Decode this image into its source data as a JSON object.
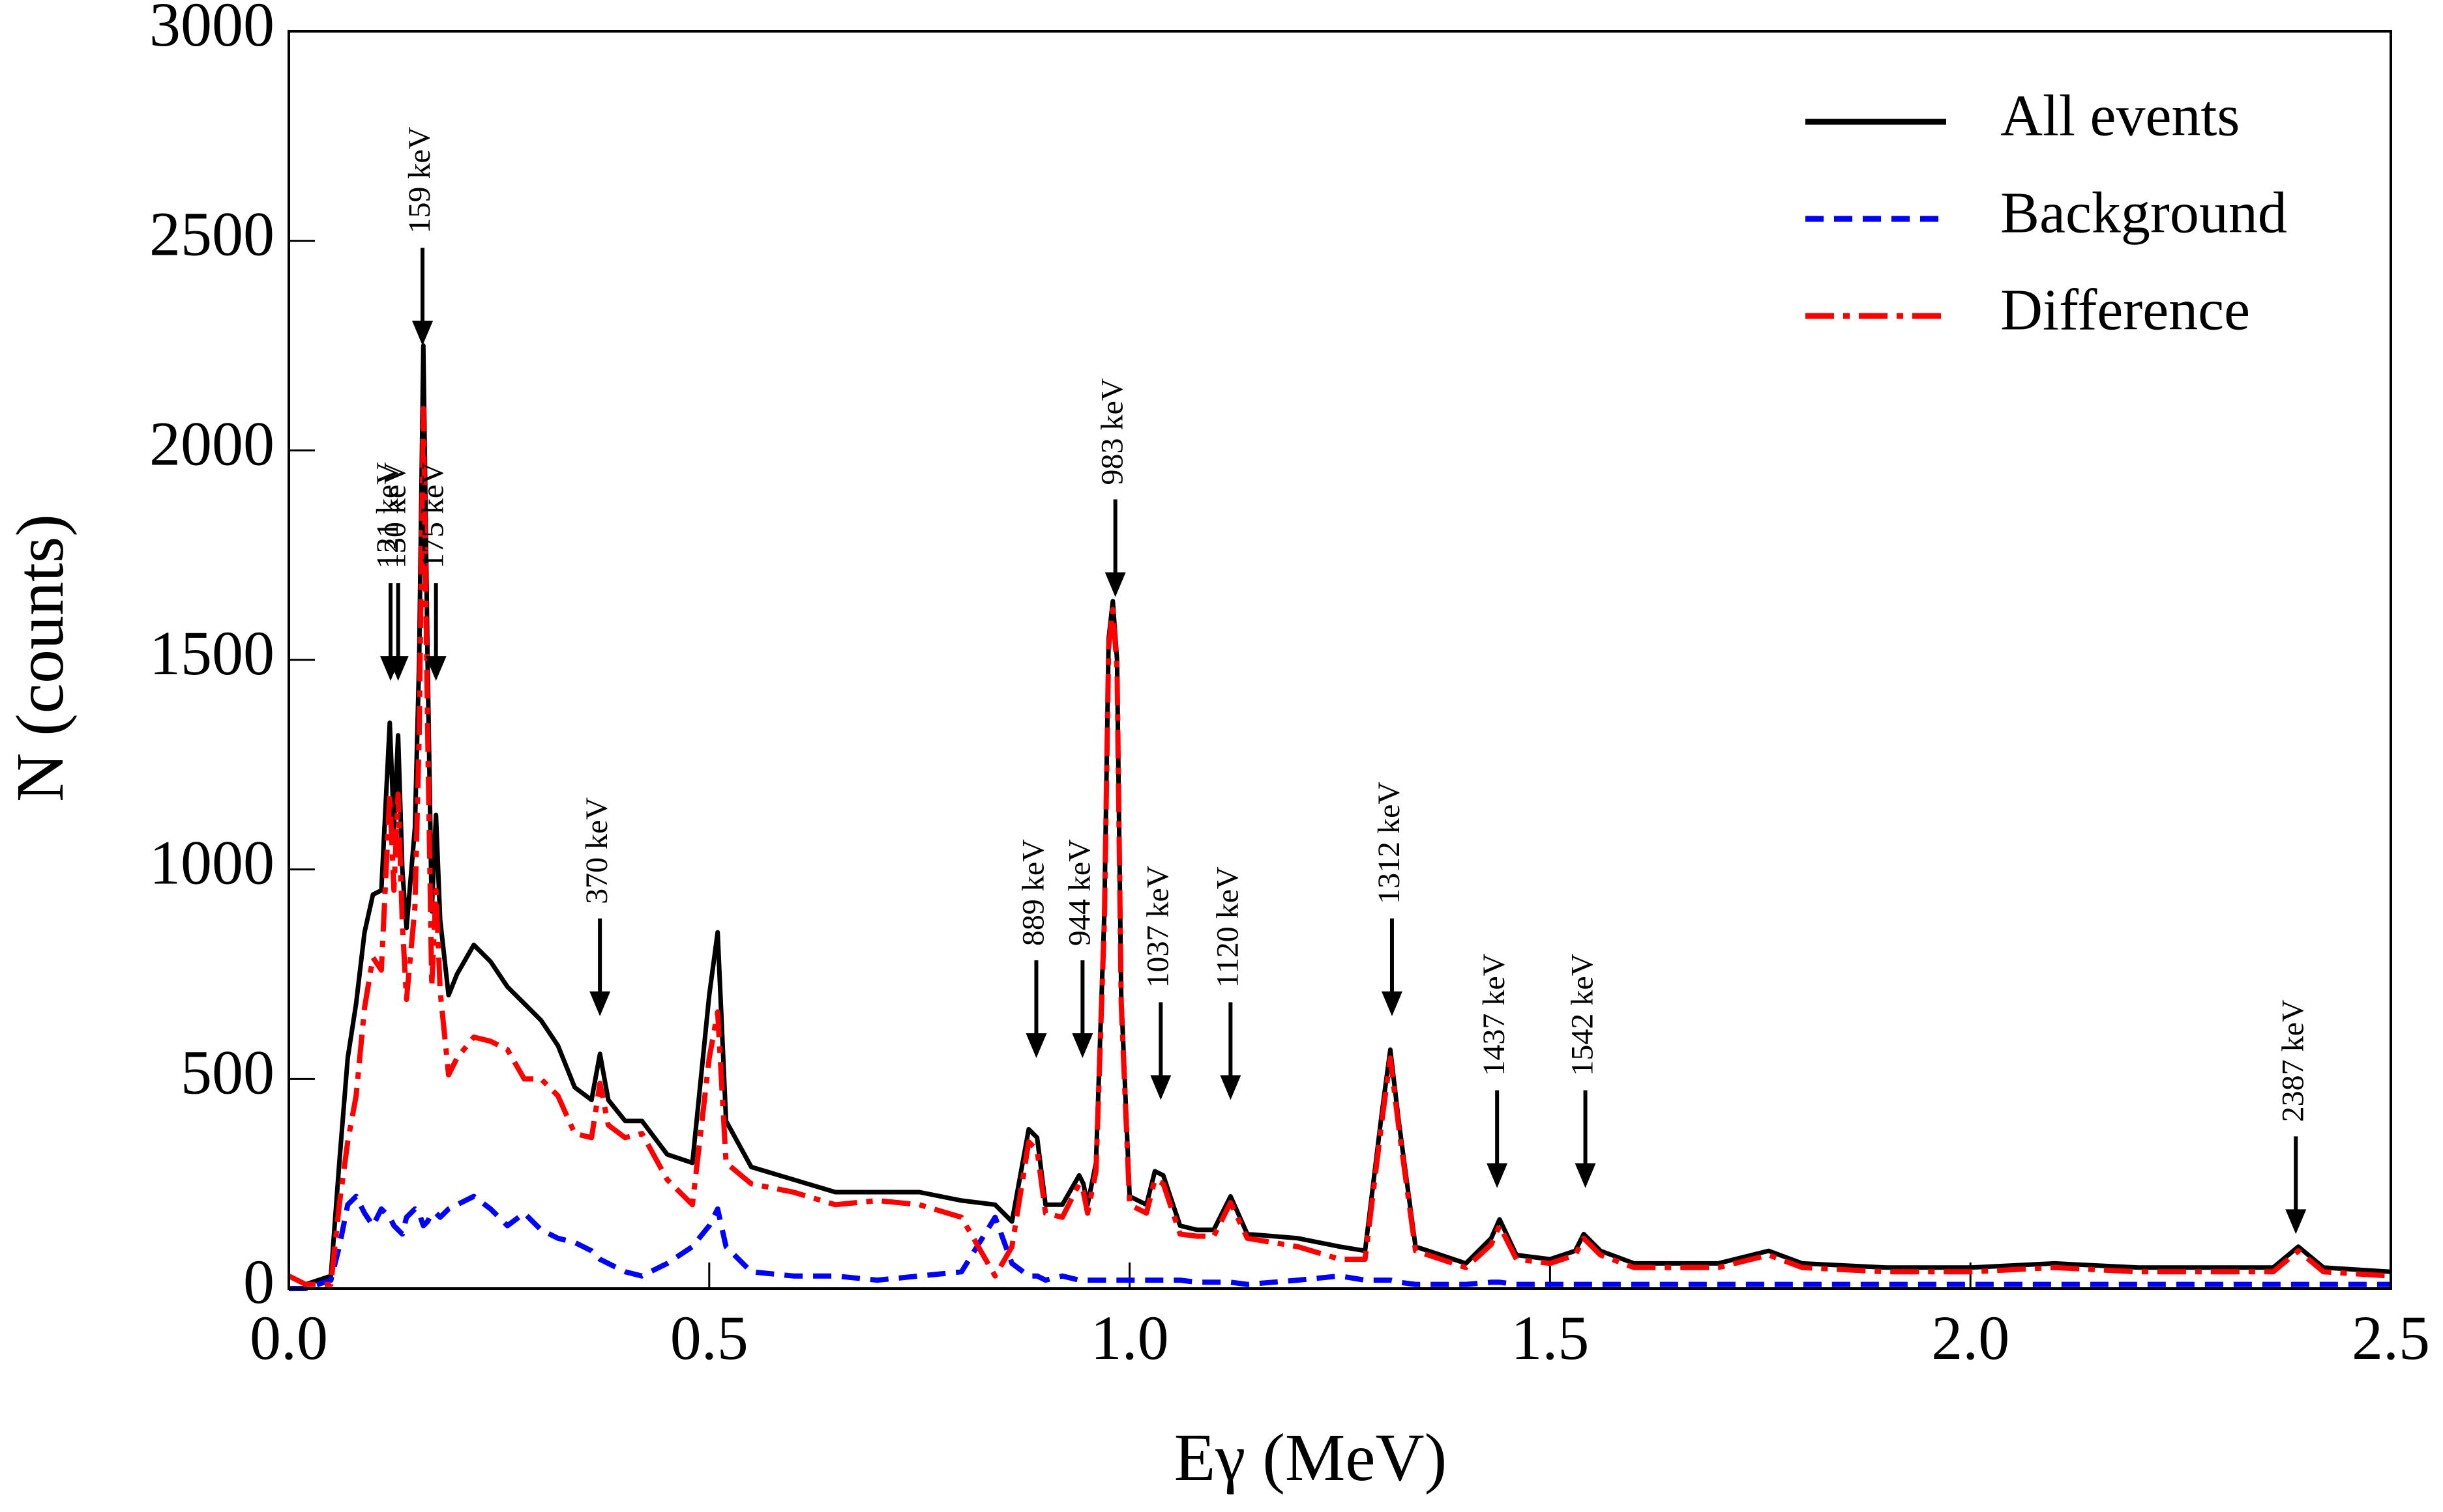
{
  "chart_data": {
    "type": "line",
    "x_label": "Eγ (MeV)",
    "y_label": "N (counts)",
    "xlim": [
      0,
      2.5
    ],
    "ylim": [
      0,
      3000
    ],
    "xticks": [
      {
        "value": 0,
        "label": "0.0"
      },
      0.5,
      {
        "value": 1,
        "label": "1.0"
      },
      1.5,
      {
        "value": 2,
        "label": "2.0"
      },
      2.5
    ],
    "yticks": [
      0,
      500,
      1000,
      1500,
      2000,
      2500,
      3000
    ],
    "legend": "upper right",
    "x": [
      0,
      0.02,
      0.05,
      0.06,
      0.07,
      0.08,
      0.09,
      0.1,
      0.11,
      0.12,
      0.125,
      0.13,
      0.135,
      0.14,
      0.15,
      0.155,
      0.16,
      0.165,
      0.17,
      0.175,
      0.18,
      0.19,
      0.2,
      0.22,
      0.24,
      0.26,
      0.28,
      0.3,
      0.32,
      0.34,
      0.36,
      0.37,
      0.38,
      0.4,
      0.42,
      0.45,
      0.48,
      0.5,
      0.51,
      0.52,
      0.55,
      0.6,
      0.65,
      0.7,
      0.75,
      0.8,
      0.84,
      0.86,
      0.88,
      0.89,
      0.9,
      0.92,
      0.94,
      0.945,
      0.95,
      0.96,
      0.97,
      0.975,
      0.98,
      0.985,
      0.99,
      1.0,
      1.02,
      1.03,
      1.04,
      1.06,
      1.08,
      1.1,
      1.12,
      1.14,
      1.2,
      1.25,
      1.28,
      1.3,
      1.31,
      1.32,
      1.34,
      1.37,
      1.4,
      1.43,
      1.44,
      1.46,
      1.5,
      1.53,
      1.54,
      1.56,
      1.6,
      1.7,
      1.76,
      1.8,
      1.9,
      2.0,
      2.1,
      2.2,
      2.3,
      2.36,
      2.39,
      2.42,
      2.5
    ],
    "series": [
      {
        "name": "All events",
        "color": "#000000",
        "dash": "solid",
        "values": [
          30,
          10,
          30,
          300,
          550,
          680,
          850,
          940,
          950,
          1350,
          1100,
          1320,
          1000,
          860,
          1100,
          1500,
          2250,
          1500,
          900,
          1130,
          880,
          700,
          750,
          820,
          780,
          720,
          680,
          640,
          580,
          480,
          450,
          560,
          450,
          400,
          400,
          320,
          300,
          700,
          850,
          400,
          290,
          260,
          230,
          230,
          230,
          210,
          200,
          160,
          380,
          360,
          200,
          200,
          270,
          250,
          200,
          300,
          900,
          1550,
          1640,
          1500,
          700,
          220,
          200,
          280,
          270,
          150,
          140,
          140,
          220,
          130,
          120,
          100,
          90,
          420,
          570,
          400,
          100,
          80,
          60,
          120,
          165,
          80,
          70,
          90,
          130,
          90,
          60,
          60,
          90,
          60,
          50,
          50,
          60,
          50,
          50,
          50,
          100,
          50,
          40
        ]
      },
      {
        "name": "Background",
        "color": "#0000ff",
        "dash": "dashed",
        "values": [
          0,
          0,
          20,
          100,
          200,
          220,
          180,
          150,
          190,
          170,
          150,
          140,
          130,
          170,
          190,
          180,
          150,
          160,
          180,
          180,
          170,
          190,
          200,
          220,
          190,
          150,
          180,
          140,
          120,
          110,
          90,
          70,
          60,
          40,
          30,
          60,
          100,
          150,
          190,
          100,
          40,
          30,
          30,
          20,
          30,
          40,
          170,
          60,
          30,
          30,
          20,
          30,
          20,
          20,
          20,
          20,
          20,
          20,
          20,
          20,
          20,
          20,
          20,
          20,
          20,
          20,
          15,
          15,
          15,
          10,
          20,
          30,
          20,
          20,
          20,
          15,
          10,
          10,
          10,
          15,
          15,
          10,
          10,
          10,
          10,
          10,
          10,
          10,
          10,
          10,
          10,
          10,
          10,
          10,
          10,
          10,
          10,
          10,
          10
        ]
      },
      {
        "name": "Difference",
        "color": "#ff0000",
        "dash": "dashdot",
        "values": [
          30,
          10,
          10,
          200,
          350,
          460,
          670,
          790,
          760,
          1180,
          950,
          1180,
          870,
          690,
          910,
          1320,
          2100,
          1340,
          720,
          950,
          710,
          510,
          550,
          600,
          590,
          570,
          500,
          500,
          460,
          370,
          360,
          490,
          390,
          360,
          370,
          260,
          200,
          550,
          660,
          300,
          250,
          230,
          200,
          210,
          200,
          170,
          30,
          100,
          350,
          330,
          180,
          170,
          250,
          230,
          180,
          280,
          880,
          1530,
          1620,
          1480,
          680,
          200,
          180,
          260,
          250,
          130,
          125,
          125,
          205,
          120,
          100,
          70,
          70,
          400,
          550,
          385,
          90,
          70,
          50,
          105,
          150,
          70,
          60,
          80,
          120,
          80,
          50,
          50,
          80,
          50,
          40,
          40,
          50,
          40,
          40,
          40,
          90,
          40,
          30
        ]
      }
    ],
    "annotations": [
      {
        "text": "121 keV",
        "x": 0.121,
        "y": 1450
      },
      {
        "text": "130 keV",
        "x": 0.13,
        "y": 1450
      },
      {
        "text": "159 keV",
        "x": 0.159,
        "y": 2250
      },
      {
        "text": "175 keV",
        "x": 0.175,
        "y": 1450
      },
      {
        "text": "370 keV",
        "x": 0.37,
        "y": 650
      },
      {
        "text": "889 keV",
        "x": 0.889,
        "y": 550
      },
      {
        "text": "944 keV",
        "x": 0.944,
        "y": 550
      },
      {
        "text": "983 keV",
        "x": 0.983,
        "y": 1650
      },
      {
        "text": "1037 keV",
        "x": 1.037,
        "y": 450
      },
      {
        "text": "1120 keV",
        "x": 1.12,
        "y": 450
      },
      {
        "text": "1312 keV",
        "x": 1.312,
        "y": 650
      },
      {
        "text": "1437 keV",
        "x": 1.437,
        "y": 240
      },
      {
        "text": "1542 keV",
        "x": 1.542,
        "y": 240
      },
      {
        "text": "2387 keV",
        "x": 2.387,
        "y": 130
      }
    ]
  }
}
